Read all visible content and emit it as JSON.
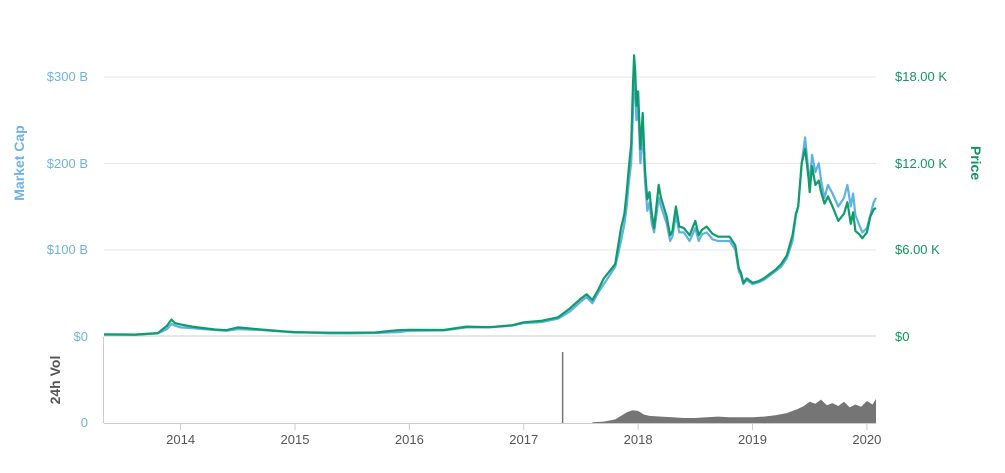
{
  "colors": {
    "market_cap": "#5fb1e6",
    "price": "#0f9b6a",
    "volume": "#757575",
    "grid": "#e6e6e6",
    "left_axis_text": "#6fb3e4",
    "right_axis_text": "#13945d",
    "x_axis_text": "#555555"
  },
  "chart_data": {
    "type": "line",
    "grid": true,
    "legend": "none",
    "x_ticks": [
      "2014",
      "2015",
      "2016",
      "2017",
      "2018",
      "2019",
      "2020"
    ],
    "x_range": [
      2013.33,
      2020.08
    ],
    "left_axis": {
      "title": "Market Cap",
      "ticks": [
        "$0",
        "$100 B",
        "$200 B",
        "$300 B"
      ],
      "tick_values": [
        0,
        100,
        200,
        300
      ],
      "range": [
        0,
        300
      ]
    },
    "right_axis": {
      "title": "Price",
      "ticks": [
        "$0",
        "$6.00 K",
        "$12.00 K",
        "$18.00 K"
      ],
      "tick_values": [
        0,
        6000,
        12000,
        18000
      ],
      "range": [
        0,
        18000
      ]
    },
    "volume_axis": {
      "title": "24h Vol",
      "ticks": [
        "0"
      ]
    },
    "series": [
      {
        "key": "market_cap",
        "unit": "billion USD",
        "x": [
          2013.33,
          2013.6,
          2013.8,
          2013.88,
          2013.92,
          2013.95,
          2014.0,
          2014.1,
          2014.2,
          2014.3,
          2014.4,
          2014.5,
          2014.7,
          2014.9,
          2015.0,
          2015.1,
          2015.3,
          2015.5,
          2015.7,
          2015.9,
          2016.0,
          2016.3,
          2016.5,
          2016.7,
          2016.9,
          2017.0,
          2017.15,
          2017.3,
          2017.4,
          2017.5,
          2017.55,
          2017.6,
          2017.65,
          2017.7,
          2017.75,
          2017.8,
          2017.85,
          2017.88,
          2017.9,
          2017.92,
          2017.94,
          2017.955,
          2017.965,
          2017.975,
          2017.985,
          2018.0,
          2018.02,
          2018.04,
          2018.06,
          2018.08,
          2018.1,
          2018.12,
          2018.14,
          2018.16,
          2018.18,
          2018.2,
          2018.25,
          2018.28,
          2018.3,
          2018.33,
          2018.36,
          2018.4,
          2018.45,
          2018.5,
          2018.53,
          2018.56,
          2018.6,
          2018.65,
          2018.7,
          2018.75,
          2018.8,
          2018.85,
          2018.88,
          2018.9,
          2018.92,
          2018.95,
          2019.0,
          2019.05,
          2019.1,
          2019.15,
          2019.2,
          2019.25,
          2019.3,
          2019.35,
          2019.38,
          2019.4,
          2019.43,
          2019.46,
          2019.49,
          2019.5,
          2019.52,
          2019.55,
          2019.58,
          2019.6,
          2019.63,
          2019.66,
          2019.7,
          2019.75,
          2019.8,
          2019.83,
          2019.86,
          2019.88,
          2019.9,
          2019.93,
          2019.96,
          2020.0,
          2020.03,
          2020.06,
          2020.08
        ],
        "values": [
          1.6,
          1.6,
          3,
          8,
          14,
          12,
          10,
          9,
          8,
          7,
          6,
          8,
          7,
          5,
          4,
          4,
          3,
          3,
          3.5,
          4.5,
          6,
          6.5,
          10,
          10,
          12,
          15,
          16,
          20,
          28,
          40,
          45,
          38,
          50,
          60,
          70,
          80,
          110,
          130,
          150,
          180,
          200,
          260,
          300,
          285,
          250,
          270,
          200,
          240,
          180,
          145,
          155,
          130,
          120,
          140,
          160,
          150,
          130,
          110,
          115,
          140,
          120,
          120,
          110,
          125,
          110,
          118,
          120,
          112,
          110,
          110,
          110,
          100,
          75,
          70,
          60,
          65,
          60,
          62,
          65,
          70,
          75,
          80,
          90,
          110,
          140,
          150,
          200,
          230,
          190,
          175,
          210,
          190,
          200,
          180,
          160,
          175,
          165,
          150,
          160,
          175,
          150,
          165,
          140,
          130,
          120,
          125,
          140,
          155,
          160
        ]
      },
      {
        "key": "price",
        "unit": "USD",
        "x": [
          2013.33,
          2013.6,
          2013.8,
          2013.88,
          2013.92,
          2013.95,
          2014.0,
          2014.1,
          2014.2,
          2014.3,
          2014.4,
          2014.5,
          2014.7,
          2014.9,
          2015.0,
          2015.1,
          2015.3,
          2015.5,
          2015.7,
          2015.9,
          2016.0,
          2016.3,
          2016.5,
          2016.7,
          2016.9,
          2017.0,
          2017.15,
          2017.3,
          2017.4,
          2017.5,
          2017.55,
          2017.6,
          2017.65,
          2017.7,
          2017.75,
          2017.8,
          2017.85,
          2017.88,
          2017.9,
          2017.92,
          2017.94,
          2017.955,
          2017.965,
          2017.975,
          2017.985,
          2018.0,
          2018.02,
          2018.04,
          2018.06,
          2018.08,
          2018.1,
          2018.12,
          2018.14,
          2018.16,
          2018.18,
          2018.2,
          2018.25,
          2018.28,
          2018.3,
          2018.33,
          2018.36,
          2018.4,
          2018.45,
          2018.5,
          2018.53,
          2018.56,
          2018.6,
          2018.65,
          2018.7,
          2018.75,
          2018.8,
          2018.85,
          2018.88,
          2018.9,
          2018.92,
          2018.95,
          2019.0,
          2019.05,
          2019.1,
          2019.15,
          2019.2,
          2019.25,
          2019.3,
          2019.35,
          2019.38,
          2019.4,
          2019.43,
          2019.46,
          2019.49,
          2019.5,
          2019.52,
          2019.55,
          2019.58,
          2019.6,
          2019.63,
          2019.66,
          2019.7,
          2019.75,
          2019.8,
          2019.83,
          2019.86,
          2019.88,
          2019.9,
          2019.93,
          2019.96,
          2020.0,
          2020.03,
          2020.06,
          2020.08
        ],
        "values": [
          120,
          100,
          200,
          700,
          1150,
          900,
          800,
          650,
          550,
          450,
          400,
          600,
          450,
          320,
          270,
          250,
          230,
          230,
          240,
          400,
          430,
          420,
          650,
          610,
          750,
          950,
          1050,
          1300,
          1900,
          2600,
          2900,
          2500,
          3200,
          4000,
          4500,
          5000,
          7500,
          8500,
          10000,
          11800,
          13300,
          17500,
          19500,
          18300,
          16000,
          17000,
          13000,
          15500,
          11500,
          9500,
          10000,
          8500,
          7500,
          9000,
          10500,
          9600,
          8300,
          7000,
          7300,
          9000,
          7600,
          7500,
          7000,
          8000,
          7000,
          7400,
          7600,
          7100,
          6900,
          6900,
          6900,
          6300,
          4700,
          4400,
          3700,
          4000,
          3700,
          3800,
          4000,
          4300,
          4600,
          5000,
          5600,
          7000,
          8500,
          9000,
          12000,
          13000,
          11000,
          10000,
          11800,
          10500,
          10800,
          10000,
          9200,
          9700,
          9000,
          8000,
          8500,
          9300,
          7800,
          8600,
          7300,
          7100,
          6800,
          7200,
          8300,
          8800,
          8900
        ]
      },
      {
        "key": "volume",
        "unit": "relative",
        "spike": {
          "x": 2017.34,
          "value": 1.0
        },
        "x": [
          2017.6,
          2017.7,
          2017.8,
          2017.85,
          2017.9,
          2017.95,
          2018.0,
          2018.05,
          2018.1,
          2018.2,
          2018.3,
          2018.4,
          2018.5,
          2018.6,
          2018.7,
          2018.8,
          2018.9,
          2019.0,
          2019.1,
          2019.2,
          2019.3,
          2019.4,
          2019.45,
          2019.5,
          2019.55,
          2019.6,
          2019.65,
          2019.7,
          2019.75,
          2019.8,
          2019.85,
          2019.9,
          2019.95,
          2020.0,
          2020.05,
          2020.08
        ],
        "values": [
          0.01,
          0.02,
          0.05,
          0.1,
          0.15,
          0.18,
          0.17,
          0.12,
          0.1,
          0.09,
          0.08,
          0.07,
          0.07,
          0.08,
          0.09,
          0.08,
          0.08,
          0.08,
          0.09,
          0.11,
          0.14,
          0.2,
          0.24,
          0.3,
          0.27,
          0.33,
          0.25,
          0.28,
          0.24,
          0.3,
          0.22,
          0.26,
          0.23,
          0.31,
          0.26,
          0.34
        ]
      }
    ]
  }
}
